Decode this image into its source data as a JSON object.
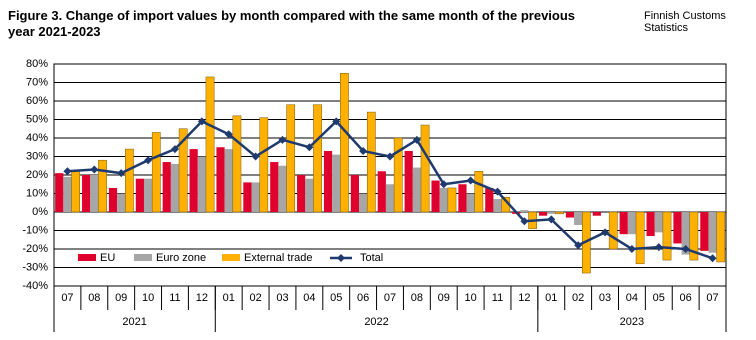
{
  "chart_data": {
    "type": "bar_line",
    "title": "Figure 3. Change of import values by month compared with the same month of the previous year 2021-2023",
    "source": "Finnish Customs Statistics",
    "categories": [
      "07",
      "08",
      "09",
      "10",
      "11",
      "12",
      "01",
      "02",
      "03",
      "04",
      "05",
      "06",
      "07",
      "08",
      "09",
      "10",
      "11",
      "12",
      "01",
      "02",
      "03",
      "04",
      "05",
      "06",
      "07"
    ],
    "groups": [
      {
        "label": "2021",
        "size": 6
      },
      {
        "label": "2022",
        "size": 12
      },
      {
        "label": "2023",
        "size": 7
      }
    ],
    "series": [
      {
        "name": "EU",
        "kind": "bar",
        "color": "#e0002d",
        "values": [
          21,
          20,
          13,
          18,
          27,
          34,
          35,
          16,
          27,
          20,
          33,
          20,
          22,
          33,
          17,
          15,
          13,
          -1,
          -2,
          -3,
          -2,
          -12,
          -13,
          -17,
          -21
        ]
      },
      {
        "name": "Euro zone",
        "kind": "bar",
        "color": "#a6a6a6",
        "values": [
          19,
          20,
          10,
          18,
          26,
          30,
          34,
          16,
          25,
          18,
          31,
          10,
          15,
          24,
          13,
          10,
          7,
          1,
          -1,
          -7,
          0,
          -12,
          -11,
          -23,
          -22
        ]
      },
      {
        "name": "External trade",
        "kind": "bar",
        "color": "#ffb000",
        "values": [
          22,
          28,
          34,
          43,
          45,
          73,
          52,
          51,
          58,
          58,
          75,
          54,
          40,
          47,
          13,
          22,
          8,
          -9,
          -1,
          -33,
          -20,
          -28,
          -26,
          -26,
          -27
        ]
      },
      {
        "name": "Total",
        "kind": "line",
        "color": "#1f3a6e",
        "values": [
          22,
          23,
          21,
          28,
          34,
          49,
          42,
          30,
          39,
          35,
          49,
          33,
          30,
          39,
          15,
          17,
          11,
          -5,
          -4,
          -18,
          -11,
          -20,
          -19,
          -20,
          -25
        ]
      }
    ],
    "ylim": [
      -40,
      80
    ],
    "yticks": [
      {
        "value": -40,
        "label": "-40%"
      },
      {
        "value": -30,
        "label": "-30%"
      },
      {
        "value": -20,
        "label": "-20%"
      },
      {
        "value": -10,
        "label": "-10%"
      },
      {
        "value": 0,
        "label": "0%"
      },
      {
        "value": 10,
        "label": "10%"
      },
      {
        "value": 20,
        "label": "20%"
      },
      {
        "value": 30,
        "label": "30%"
      },
      {
        "value": 40,
        "label": "40%"
      },
      {
        "value": 50,
        "label": "50%"
      },
      {
        "value": 60,
        "label": "60%"
      },
      {
        "value": 70,
        "label": "70%"
      },
      {
        "value": 80,
        "label": "80%"
      }
    ],
    "grid": true,
    "legend": "lower left"
  }
}
